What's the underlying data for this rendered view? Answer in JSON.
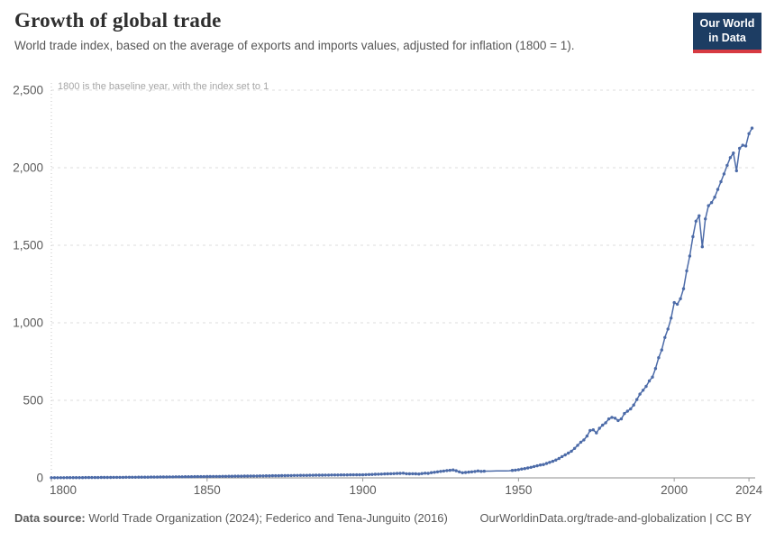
{
  "header": {
    "title": "Growth of global trade",
    "subtitle": "World trade index, based on the average of exports and imports values, adjusted for inflation (1800 = 1)."
  },
  "logo": {
    "line1": "Our World",
    "line2": "in Data",
    "bg_color": "#1d3d63",
    "accent_color": "#d73a42"
  },
  "footer": {
    "source_bold": "Data source:",
    "source_rest": " World Trade Organization (2024); Federico and Tena-Junguito (2016)",
    "credit": "OurWorldinData.org/trade-and-globalization | CC BY"
  },
  "chart_data": {
    "type": "line",
    "title": "Growth of global trade",
    "xlabel": "",
    "ylabel": "",
    "xlim": [
      1800,
      2026
    ],
    "ylim": [
      0,
      2500
    ],
    "grid": "horizontal-dashed",
    "legend": "none",
    "x_ticks": [
      {
        "value": 1800,
        "label": "1800"
      },
      {
        "value": 1850,
        "label": "1850"
      },
      {
        "value": 1900,
        "label": "1900"
      },
      {
        "value": 1950,
        "label": "1950"
      },
      {
        "value": 2000,
        "label": "2000"
      },
      {
        "value": 2024,
        "label": "2024"
      }
    ],
    "y_ticks": [
      {
        "value": 0,
        "label": "0"
      },
      {
        "value": 500,
        "label": "500"
      },
      {
        "value": 1000,
        "label": "1,000"
      },
      {
        "value": 1500,
        "label": "1,500"
      },
      {
        "value": 2000,
        "label": "2,000"
      },
      {
        "value": 2500,
        "label": "2,500"
      }
    ],
    "annotation": {
      "text": "1800 is the baseline year, with the index set to 1",
      "x": 1800
    },
    "series": [
      {
        "name": "World trade index",
        "color": "#4c6ba8",
        "marker_gap_years": [
          1940,
          1947
        ],
        "points": [
          [
            1800,
            1.0
          ],
          [
            1801,
            1.1
          ],
          [
            1802,
            1.2
          ],
          [
            1803,
            1.3
          ],
          [
            1804,
            1.4
          ],
          [
            1805,
            1.5
          ],
          [
            1806,
            1.6
          ],
          [
            1807,
            1.7
          ],
          [
            1808,
            1.8
          ],
          [
            1809,
            1.9
          ],
          [
            1810,
            2.0
          ],
          [
            1811,
            2.1
          ],
          [
            1812,
            2.2
          ],
          [
            1813,
            2.3
          ],
          [
            1814,
            2.4
          ],
          [
            1815,
            2.5
          ],
          [
            1816,
            2.7
          ],
          [
            1817,
            2.8
          ],
          [
            1818,
            2.9
          ],
          [
            1819,
            3.0
          ],
          [
            1820,
            3.2
          ],
          [
            1821,
            3.3
          ],
          [
            1822,
            3.5
          ],
          [
            1823,
            3.6
          ],
          [
            1824,
            3.8
          ],
          [
            1825,
            3.9
          ],
          [
            1826,
            4.1
          ],
          [
            1827,
            4.2
          ],
          [
            1828,
            4.4
          ],
          [
            1829,
            4.6
          ],
          [
            1830,
            4.8
          ],
          [
            1831,
            4.9
          ],
          [
            1832,
            5.1
          ],
          [
            1833,
            5.3
          ],
          [
            1834,
            5.5
          ],
          [
            1835,
            5.7
          ],
          [
            1836,
            5.9
          ],
          [
            1837,
            6.1
          ],
          [
            1838,
            6.3
          ],
          [
            1839,
            6.5
          ],
          [
            1840,
            6.7
          ],
          [
            1841,
            6.9
          ],
          [
            1842,
            7.1
          ],
          [
            1843,
            7.3
          ],
          [
            1844,
            7.5
          ],
          [
            1845,
            7.7
          ],
          [
            1846,
            7.9
          ],
          [
            1847,
            8.1
          ],
          [
            1848,
            8.2
          ],
          [
            1849,
            8.4
          ],
          [
            1850,
            8.6
          ],
          [
            1851,
            8.8
          ],
          [
            1852,
            9.1
          ],
          [
            1853,
            9.3
          ],
          [
            1854,
            9.5
          ],
          [
            1855,
            9.8
          ],
          [
            1856,
            10.0
          ],
          [
            1857,
            10.3
          ],
          [
            1858,
            10.5
          ],
          [
            1859,
            10.8
          ],
          [
            1860,
            11.0
          ],
          [
            1861,
            11.2
          ],
          [
            1862,
            11.5
          ],
          [
            1863,
            11.7
          ],
          [
            1864,
            12.0
          ],
          [
            1865,
            12.2
          ],
          [
            1866,
            12.5
          ],
          [
            1867,
            12.7
          ],
          [
            1868,
            13.0
          ],
          [
            1869,
            13.2
          ],
          [
            1870,
            13.5
          ],
          [
            1871,
            13.7
          ],
          [
            1872,
            14.0
          ],
          [
            1873,
            14.2
          ],
          [
            1874,
            14.5
          ],
          [
            1875,
            14.7
          ],
          [
            1876,
            15.0
          ],
          [
            1877,
            15.2
          ],
          [
            1878,
            15.5
          ],
          [
            1879,
            15.7
          ],
          [
            1880,
            16.0
          ],
          [
            1881,
            16.2
          ],
          [
            1882,
            16.5
          ],
          [
            1883,
            16.7
          ],
          [
            1884,
            17.0
          ],
          [
            1885,
            17.2
          ],
          [
            1886,
            17.5
          ],
          [
            1887,
            17.7
          ],
          [
            1888,
            18.0
          ],
          [
            1889,
            18.2
          ],
          [
            1890,
            18.5
          ],
          [
            1891,
            18.6
          ],
          [
            1892,
            18.8
          ],
          [
            1893,
            19.0
          ],
          [
            1894,
            19.1
          ],
          [
            1895,
            19.3
          ],
          [
            1896,
            19.5
          ],
          [
            1897,
            19.6
          ],
          [
            1898,
            19.8
          ],
          [
            1899,
            19.9
          ],
          [
            1900,
            20.0
          ],
          [
            1901,
            20.8
          ],
          [
            1902,
            21.5
          ],
          [
            1903,
            22.3
          ],
          [
            1904,
            23.0
          ],
          [
            1905,
            23.8
          ],
          [
            1906,
            24.5
          ],
          [
            1907,
            25.3
          ],
          [
            1908,
            26.0
          ],
          [
            1909,
            26.8
          ],
          [
            1910,
            27.5
          ],
          [
            1911,
            28.3
          ],
          [
            1912,
            29.2
          ],
          [
            1913,
            30.0
          ],
          [
            1914,
            27.0
          ],
          [
            1915,
            26.0
          ],
          [
            1916,
            27.0
          ],
          [
            1917,
            26.0
          ],
          [
            1918,
            25.0
          ],
          [
            1919,
            28.0
          ],
          [
            1920,
            30.0
          ],
          [
            1921,
            29.0
          ],
          [
            1922,
            34.0
          ],
          [
            1923,
            36.0
          ],
          [
            1924,
            39.0
          ],
          [
            1925,
            42.0
          ],
          [
            1926,
            44.0
          ],
          [
            1927,
            47.0
          ],
          [
            1928,
            49.0
          ],
          [
            1929,
            51.0
          ],
          [
            1930,
            46.0
          ],
          [
            1931,
            39.0
          ],
          [
            1932,
            33.0
          ],
          [
            1933,
            35.0
          ],
          [
            1934,
            37.0
          ],
          [
            1935,
            39.0
          ],
          [
            1936,
            41.0
          ],
          [
            1937,
            45.0
          ],
          [
            1938,
            42.0
          ],
          [
            1939,
            43.0
          ],
          [
            1940,
            43.4
          ],
          [
            1941,
            43.8
          ],
          [
            1942,
            44.2
          ],
          [
            1943,
            44.5
          ],
          [
            1944,
            44.9
          ],
          [
            1945,
            45.3
          ],
          [
            1946,
            45.6
          ],
          [
            1947,
            46.0
          ],
          [
            1948,
            48
          ],
          [
            1949,
            50
          ],
          [
            1950,
            53
          ],
          [
            1951,
            57
          ],
          [
            1952,
            60
          ],
          [
            1953,
            64
          ],
          [
            1954,
            68
          ],
          [
            1955,
            73
          ],
          [
            1956,
            78
          ],
          [
            1957,
            83
          ],
          [
            1958,
            86
          ],
          [
            1959,
            93
          ],
          [
            1960,
            100
          ],
          [
            1961,
            107
          ],
          [
            1962,
            115
          ],
          [
            1963,
            125
          ],
          [
            1964,
            137
          ],
          [
            1965,
            148
          ],
          [
            1966,
            160
          ],
          [
            1967,
            172
          ],
          [
            1968,
            190
          ],
          [
            1969,
            210
          ],
          [
            1970,
            230
          ],
          [
            1971,
            245
          ],
          [
            1972,
            270
          ],
          [
            1973,
            305
          ],
          [
            1974,
            310
          ],
          [
            1975,
            290
          ],
          [
            1976,
            320
          ],
          [
            1977,
            340
          ],
          [
            1978,
            355
          ],
          [
            1979,
            380
          ],
          [
            1980,
            390
          ],
          [
            1981,
            385
          ],
          [
            1982,
            370
          ],
          [
            1983,
            380
          ],
          [
            1984,
            415
          ],
          [
            1985,
            430
          ],
          [
            1986,
            445
          ],
          [
            1987,
            470
          ],
          [
            1988,
            505
          ],
          [
            1989,
            540
          ],
          [
            1990,
            565
          ],
          [
            1991,
            590
          ],
          [
            1992,
            625
          ],
          [
            1993,
            650
          ],
          [
            1994,
            705
          ],
          [
            1995,
            775
          ],
          [
            1996,
            825
          ],
          [
            1997,
            905
          ],
          [
            1998,
            960
          ],
          [
            1999,
            1030
          ],
          [
            2000,
            1130
          ],
          [
            2001,
            1120
          ],
          [
            2002,
            1155
          ],
          [
            2003,
            1220
          ],
          [
            2004,
            1335
          ],
          [
            2005,
            1430
          ],
          [
            2006,
            1555
          ],
          [
            2007,
            1655
          ],
          [
            2008,
            1690
          ],
          [
            2009,
            1490
          ],
          [
            2010,
            1670
          ],
          [
            2011,
            1755
          ],
          [
            2012,
            1775
          ],
          [
            2013,
            1810
          ],
          [
            2014,
            1860
          ],
          [
            2015,
            1910
          ],
          [
            2016,
            1960
          ],
          [
            2017,
            2015
          ],
          [
            2018,
            2065
          ],
          [
            2019,
            2095
          ],
          [
            2020,
            1980
          ],
          [
            2021,
            2125
          ],
          [
            2022,
            2145
          ],
          [
            2023,
            2140
          ],
          [
            2024,
            2220
          ],
          [
            2025,
            2255
          ]
        ]
      }
    ]
  }
}
